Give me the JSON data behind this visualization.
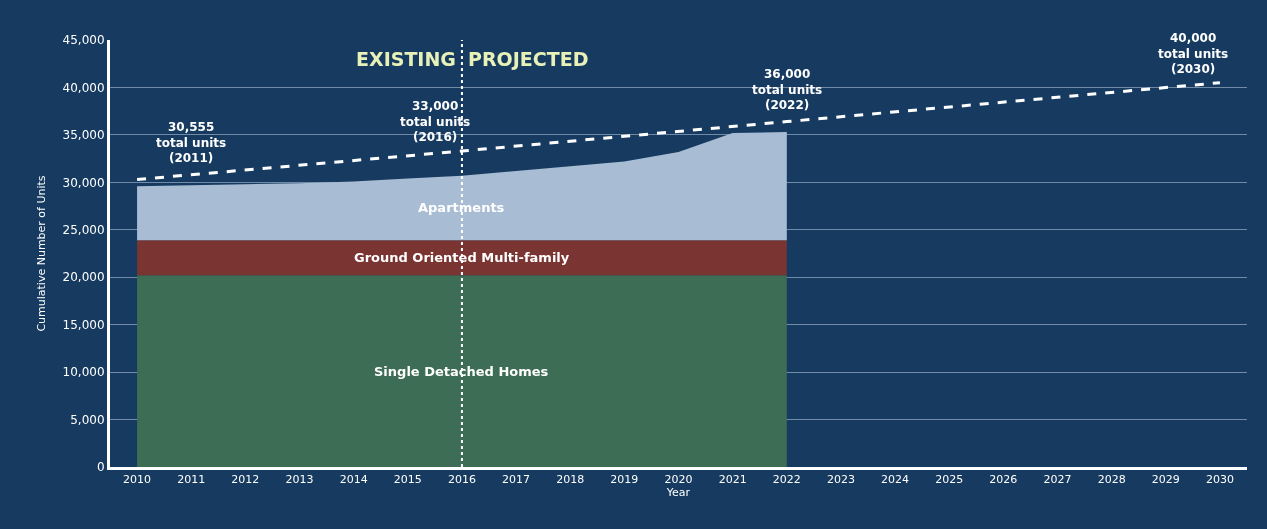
{
  "chart_data": {
    "type": "area",
    "stacked": true,
    "xlabel": "Year",
    "ylabel": "Cumulative Number of Units",
    "x": [
      2010,
      2011,
      2012,
      2013,
      2014,
      2015,
      2016,
      2017,
      2018,
      2019,
      2020,
      2021,
      2022
    ],
    "series": [
      {
        "name": "Single Detached Homes",
        "color": "#3e6d55",
        "values": [
          20200,
          20200,
          20200,
          20200,
          20200,
          20200,
          20200,
          20200,
          20200,
          20200,
          20200,
          20200,
          20200
        ]
      },
      {
        "name": "Ground Oriented Multi-family",
        "color": "#7a3431",
        "values": [
          3700,
          3700,
          3700,
          3700,
          3700,
          3700,
          3700,
          3700,
          3700,
          3700,
          3700,
          3700,
          3700
        ]
      },
      {
        "name": "Apartments",
        "color": "#a8bcd4",
        "values": [
          5700,
          5800,
          5900,
          6000,
          6200,
          6500,
          6800,
          7300,
          7800,
          8300,
          9300,
          11300,
          11400
        ]
      },
      {
        "type": "line",
        "color": "#ffffff",
        "line_style": "dashed",
        "marker": "none",
        "x": [
          2010,
          2016,
          2022,
          2030
        ],
        "values": [
          30300,
          33300,
          36400,
          40500
        ]
      }
    ],
    "xlim": [
      2009.5,
      2030.5
    ],
    "xticks": [
      2010,
      2011,
      2012,
      2013,
      2014,
      2015,
      2016,
      2017,
      2018,
      2019,
      2020,
      2021,
      2022,
      2023,
      2024,
      2025,
      2026,
      2027,
      2028,
      2029,
      2030
    ],
    "ylim": [
      0,
      45000
    ],
    "yticks": [
      {
        "value": 0,
        "label": "0"
      },
      {
        "value": 5000,
        "label": "5,000"
      },
      {
        "value": 10000,
        "label": "10,000"
      },
      {
        "value": 15000,
        "label": "15,000"
      },
      {
        "value": 20000,
        "label": "20,000"
      },
      {
        "value": 25000,
        "label": "25,000"
      },
      {
        "value": 30000,
        "label": "30,000"
      },
      {
        "value": 35000,
        "label": "35,000"
      },
      {
        "value": 40000,
        "label": "40,000"
      },
      {
        "value": 45000,
        "label": "45,000"
      }
    ],
    "grid": "y",
    "legend": false,
    "ref_lines": [
      {
        "axis": "x",
        "value": 2016,
        "color": "#ffffff",
        "line_style": "dotted"
      }
    ],
    "annotations": [
      "EXISTING",
      "PROJECTED",
      {
        "text": "30,555\ntotal units\n(2011)",
        "x": 2011,
        "y": 30800
      },
      {
        "text": "33,000\ntotal units\n(2016)",
        "x": 2015.5,
        "y": 33000
      },
      {
        "text": "36,000\ntotal units\n(2022)",
        "x": 2022,
        "y": 36400
      },
      {
        "text": "40,000\ntotal units\n(2030)",
        "x": 2029.5,
        "y": 40200
      }
    ]
  }
}
